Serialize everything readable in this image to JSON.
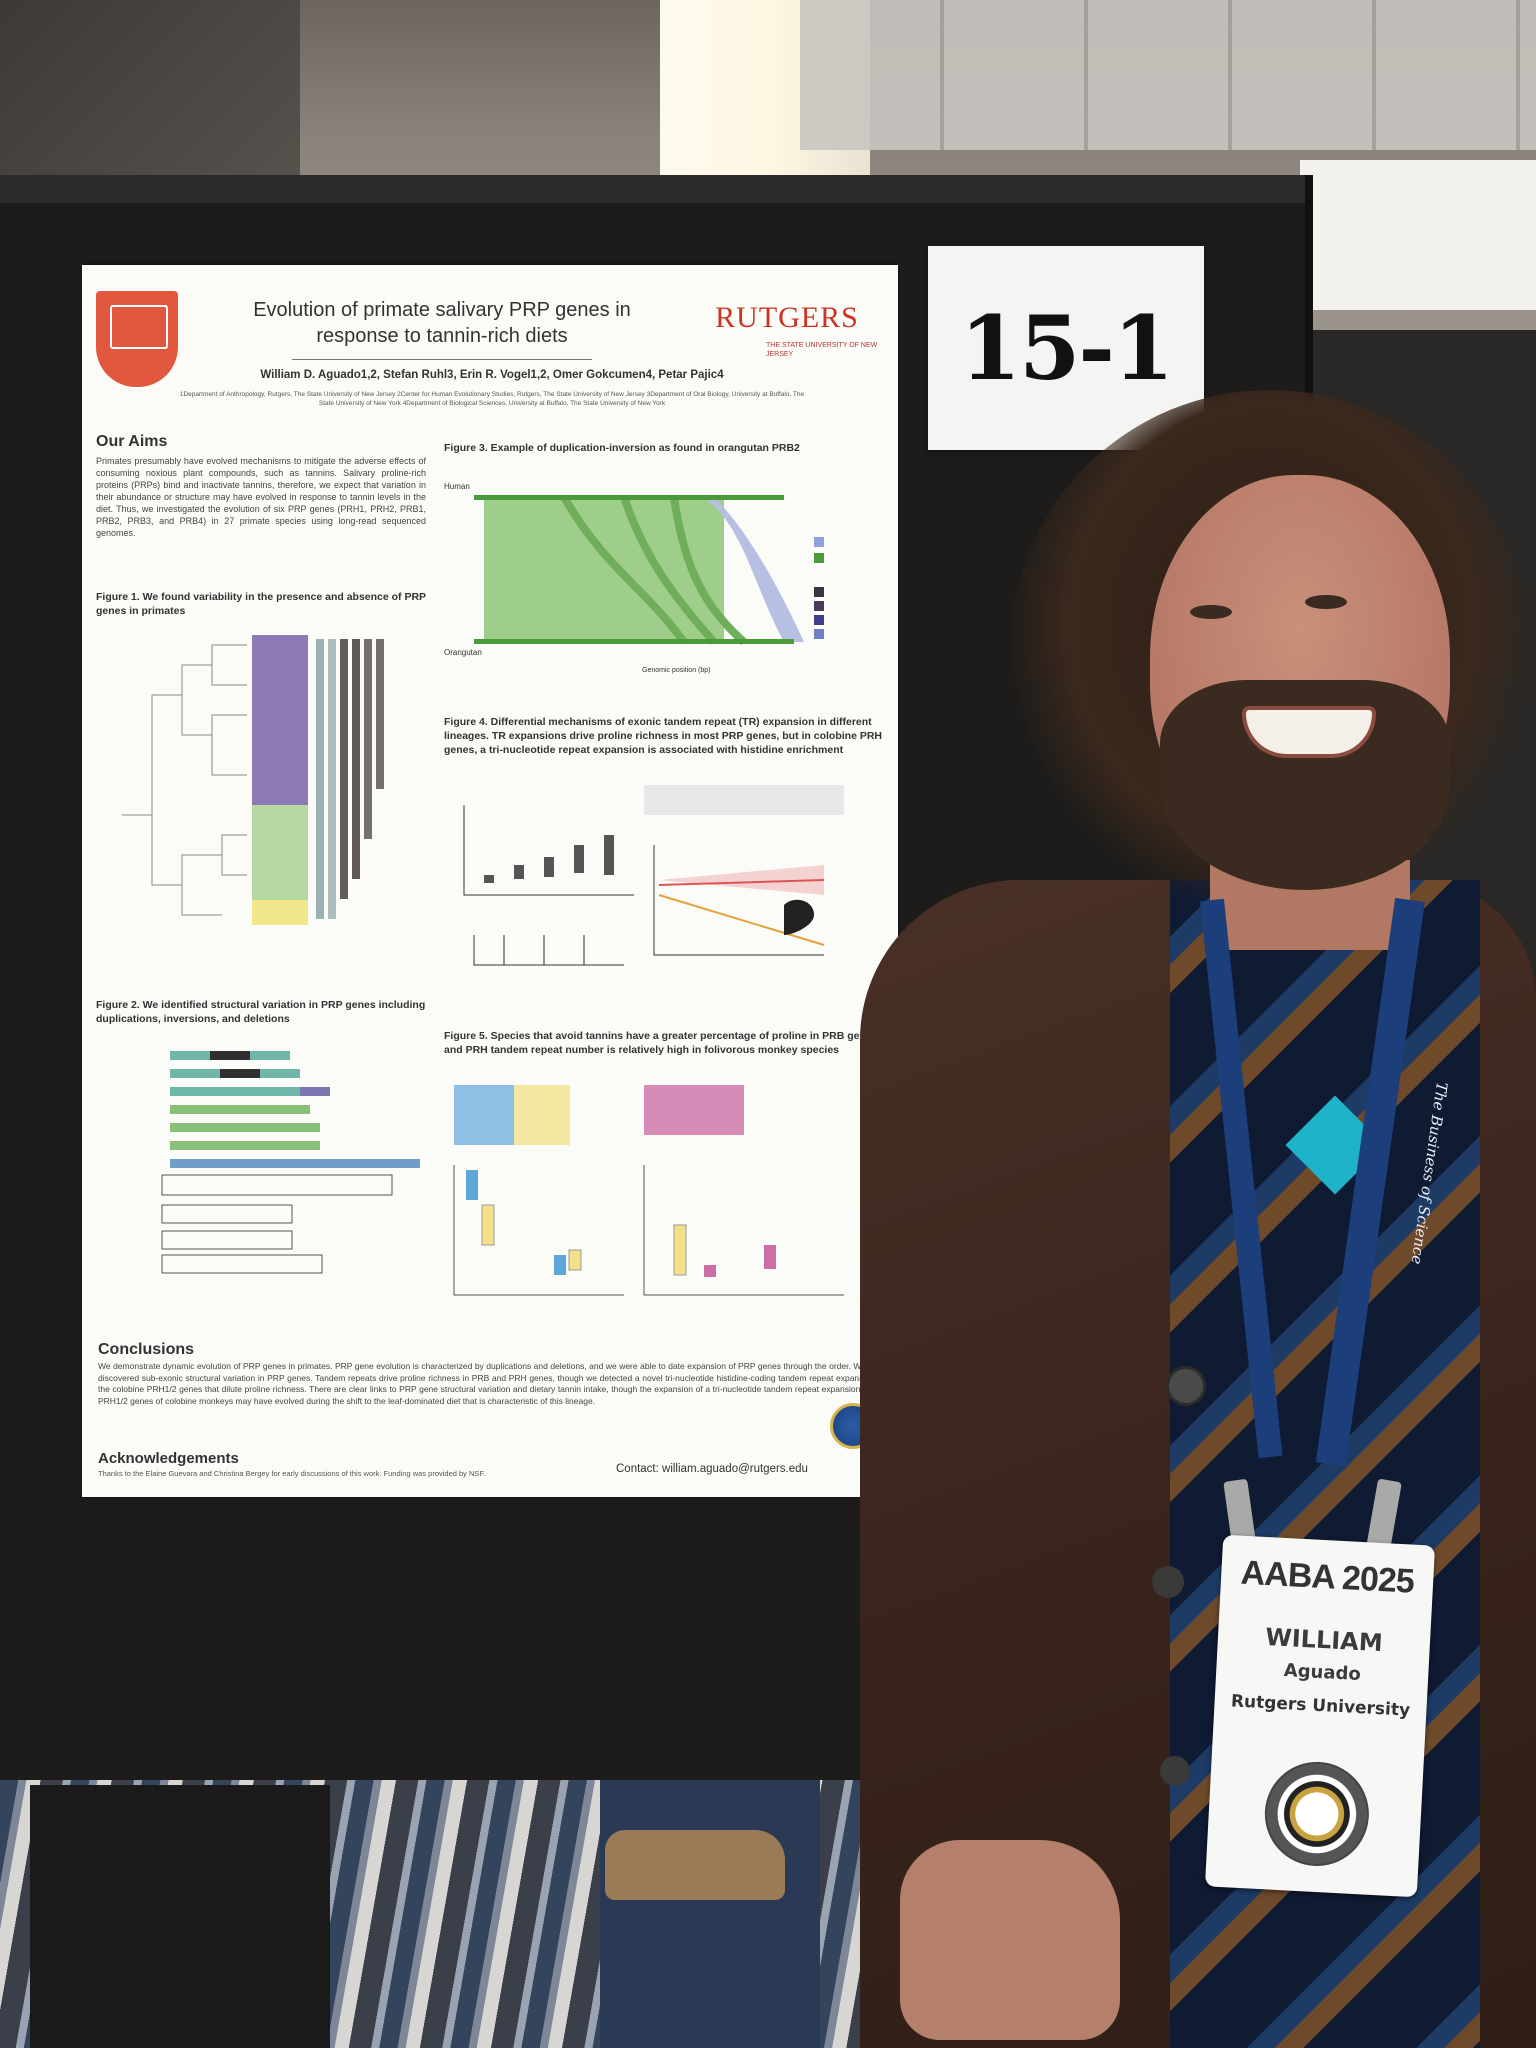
{
  "booth": {
    "number": "15-1"
  },
  "poster": {
    "title": "Evolution of primate salivary PRP genes in response to tannin-rich diets",
    "institution_logo": "RUTGERS",
    "institution_sub": "THE STATE UNIVERSITY OF NEW JERSEY",
    "authors": "William D. Aguado1,2, Stefan Ruhl3, Erin R. Vogel1,2, Omer Gokcumen4, Petar Pajic4",
    "affiliations": "1Department of Anthropology, Rutgers, The State University of New Jersey 2Center for Human Evolutionary Studies, Rutgers, The State University of New Jersey 3Department of Oral Biology, University at Buffalo, The State University of New York 4Department of Biological Sciences, University at Buffalo, The State University of New York",
    "aims_heading": "Our Aims",
    "aims_text": "Primates presumably have evolved mechanisms to mitigate the adverse effects of consuming noxious plant compounds, such as tannins. Salivary proline-rich proteins (PRPs) bind and inactivate tannins, therefore, we expect that variation in their abundance or structure may have evolved in response to tannin levels in the diet. Thus, we investigated the evolution of six PRP genes (PRH1, PRH2, PRB1, PRB2, PRB3, and PRB4) in 27 primate species using long-read sequenced genomes.",
    "fig1_caption": "Figure 1. We found variability in the presence and absence of PRP genes in primates",
    "fig2_caption": "Figure 2. We identified structural variation in PRP genes including duplications, inversions, and deletions",
    "fig3_caption": "Figure 3. Example of duplication-inversion as found in orangutan PRB2",
    "fig4_caption": "Figure 4. Differential mechanisms of exonic tandem repeat (TR) expansion in different lineages. TR expansions drive proline richness in most PRP genes, but in colobine PRH genes, a tri-nucleotide repeat expansion is associated with histidine enrichment",
    "fig5_caption": "Figure 5. Species that avoid tannins have a greater percentage of proline in PRB genes and PRH tandem repeat number is relatively high in folivorous monkey species",
    "fig3_labels": {
      "top": "Human",
      "bottom": "Orangutan",
      "xlabel": "Genomic position (bp)"
    },
    "conclusions_heading": "Conclusions",
    "conclusions_text": "We demonstrate dynamic evolution of PRP genes in primates. PRP gene evolution is characterized by duplications and deletions, and we were able to date expansion of PRP genes through the order. We also discovered sub-exonic structural variation in PRP genes. Tandem repeats drive proline richness in PRB and PRH genes, though we detected a novel tri-nucleotide histidine-coding tandem repeat expansion in the colobine PRH1/2 genes that dilute proline richness. There are clear links to PRP gene structural variation and dietary tannin intake, though the expansion of a tri-nucleotide tandem repeat expansion in the PRH1/2 genes of colobine monkeys may have evolved during the shift to the leaf-dominated diet that is characteristic of this lineage.",
    "ack_heading": "Acknowledgements",
    "ack_text": "Thanks to the Elaine Guevara and Christina Bergey for early discussions of this work. Funding was provided by NSF.",
    "contact": "Contact: william.aguado@rutgers.edu"
  },
  "badge": {
    "event": "AABA 2025",
    "first_name": "WILLIAM",
    "last_name": "Aguado",
    "organization": "Rutgers University"
  },
  "lanyard": {
    "text": "The Business of Science"
  },
  "colors": {
    "rutgers_red": "#cc3322",
    "fig3_green": "#8fc27a",
    "lanyard_blue": "#1c3e7a"
  }
}
